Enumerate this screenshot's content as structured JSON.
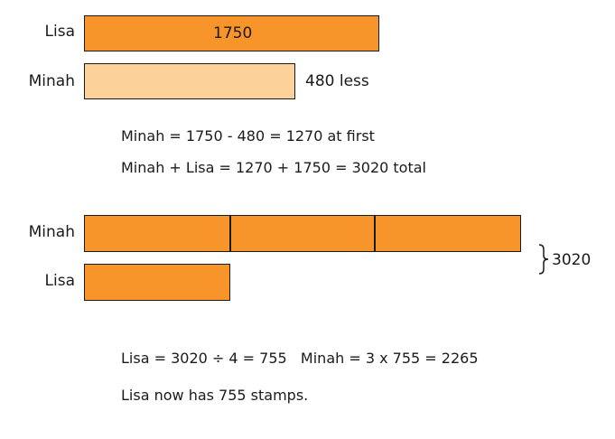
{
  "model1": {
    "lisa_label": "Lisa",
    "lisa_value": "1750",
    "minah_label": "Minah",
    "minah_diff": "480 less"
  },
  "steps1": {
    "line1": "Minah = 1750 - 480 = 1270 at first",
    "line2": "Minah + Lisa = 1270 + 1750 = 3020 total"
  },
  "model2": {
    "minah_label": "Minah",
    "lisa_label": "Lisa",
    "minah_units": 3,
    "lisa_units": 1,
    "total": "3020"
  },
  "steps2": {
    "line1": "Lisa = 3020 ÷ 4 = 755   Minah = 3 x 755 = 2265",
    "line2": "Lisa now has 755 stamps."
  },
  "colors": {
    "bar_dark": "#f7952b",
    "bar_light": "#fdd19a",
    "outline": "#1a1a1a"
  }
}
